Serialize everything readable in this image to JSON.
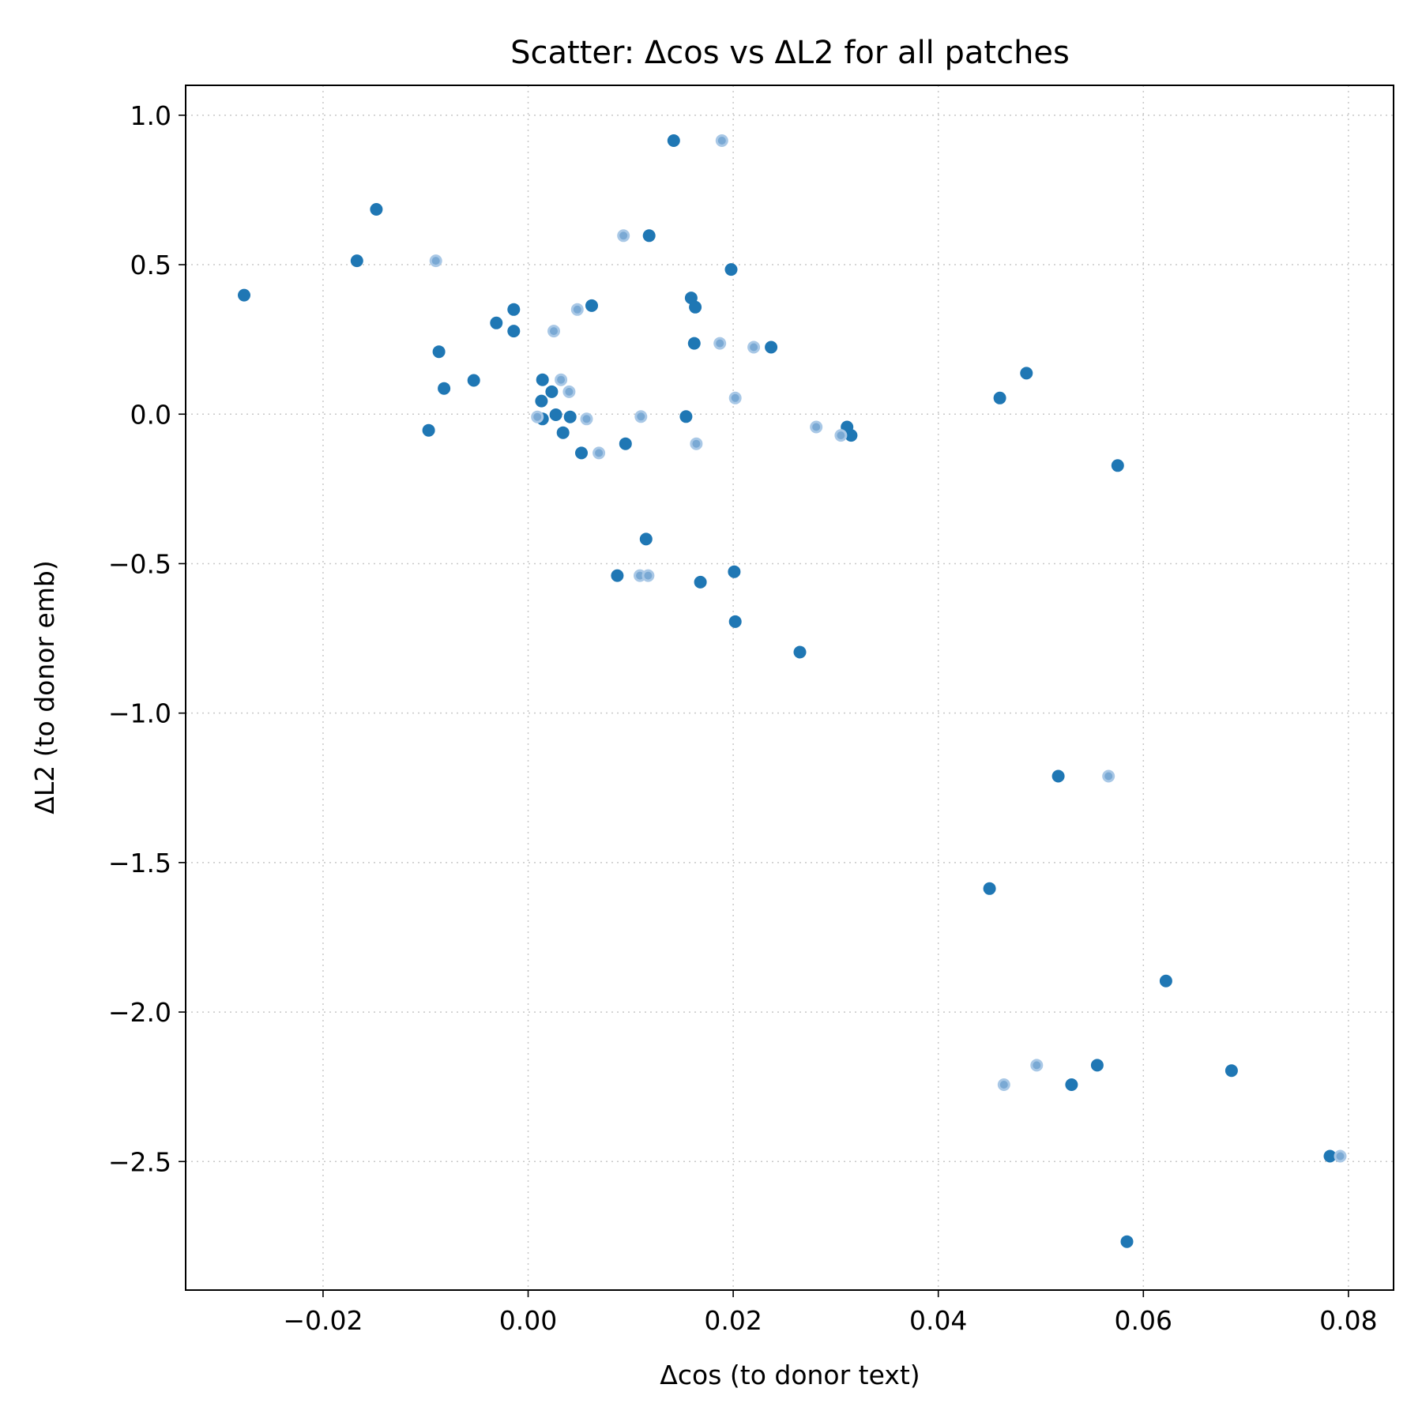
{
  "chart_data": {
    "type": "scatter",
    "title": "Scatter: Δcos vs ΔL2 for all patches",
    "xlabel": "Δcos (to donor text)",
    "ylabel": "ΔL2 (to donor emb)",
    "xlim": [
      -0.0334,
      0.0844
    ],
    "ylim": [
      -2.93,
      1.1
    ],
    "xticks": [
      -0.02,
      0.0,
      0.02,
      0.04,
      0.06,
      0.08
    ],
    "xtick_labels": [
      "−0.02",
      "0.00",
      "0.02",
      "0.04",
      "0.06",
      "0.08"
    ],
    "yticks": [
      1.0,
      0.5,
      0.0,
      -0.5,
      -1.0,
      -1.5,
      -2.0,
      -2.5
    ],
    "ytick_labels": [
      "1.0",
      "0.5",
      "0.0",
      "−0.5",
      "−1.0",
      "−1.5",
      "−2.0",
      "−2.5"
    ],
    "grid": true,
    "colors": {
      "solid": "#1f77b4",
      "faded": "#7aa9d4"
    },
    "series": [
      {
        "style": "solid",
        "points": [
          [
            0.0142,
            0.915
          ],
          [
            0.0118,
            0.597
          ],
          [
            -0.0148,
            0.685
          ],
          [
            -0.0167,
            0.513
          ],
          [
            -0.0277,
            0.398
          ],
          [
            0.0198,
            0.484
          ],
          [
            0.0159,
            0.389
          ],
          [
            0.0163,
            0.358
          ],
          [
            0.0062,
            0.363
          ],
          [
            -0.0014,
            0.35
          ],
          [
            -0.0031,
            0.305
          ],
          [
            -0.0014,
            0.278
          ],
          [
            0.0162,
            0.237
          ],
          [
            0.0237,
            0.224
          ],
          [
            -0.0087,
            0.209
          ],
          [
            0.0486,
            0.137
          ],
          [
            -0.0053,
            0.113
          ],
          [
            0.0014,
            0.115
          ],
          [
            -0.0082,
            0.086
          ],
          [
            0.0023,
            0.075
          ],
          [
            0.0013,
            0.044
          ],
          [
            0.046,
            0.054
          ],
          [
            0.0014,
            -0.016
          ],
          [
            0.0027,
            -0.002
          ],
          [
            0.0041,
            -0.009
          ],
          [
            0.0154,
            -0.008
          ],
          [
            -0.0097,
            -0.054
          ],
          [
            0.0034,
            -0.062
          ],
          [
            0.0311,
            -0.043
          ],
          [
            0.0315,
            -0.071
          ],
          [
            0.0095,
            -0.099
          ],
          [
            0.0052,
            -0.13
          ],
          [
            0.0575,
            -0.172
          ],
          [
            0.0115,
            -0.418
          ],
          [
            0.0087,
            -0.54
          ],
          [
            0.0201,
            -0.527
          ],
          [
            0.0168,
            -0.562
          ],
          [
            0.0202,
            -0.694
          ],
          [
            0.0265,
            -0.796
          ],
          [
            0.0517,
            -1.211
          ],
          [
            0.045,
            -1.587
          ],
          [
            0.0622,
            -1.896
          ],
          [
            0.0555,
            -2.178
          ],
          [
            0.053,
            -2.243
          ],
          [
            0.0686,
            -2.196
          ],
          [
            0.0782,
            -2.482
          ],
          [
            0.0584,
            -2.768
          ]
        ]
      },
      {
        "style": "faded",
        "points": [
          [
            0.0189,
            0.915
          ],
          [
            0.0093,
            0.597
          ],
          [
            -0.009,
            0.513
          ],
          [
            0.0048,
            0.35
          ],
          [
            0.0025,
            0.278
          ],
          [
            0.0187,
            0.237
          ],
          [
            0.022,
            0.224
          ],
          [
            0.0032,
            0.115
          ],
          [
            0.004,
            0.075
          ],
          [
            0.0202,
            0.054
          ],
          [
            0.0009,
            -0.009
          ],
          [
            0.0057,
            -0.016
          ],
          [
            0.011,
            -0.008
          ],
          [
            0.0281,
            -0.043
          ],
          [
            0.0305,
            -0.071
          ],
          [
            0.0164,
            -0.099
          ],
          [
            0.0069,
            -0.13
          ],
          [
            0.0109,
            -0.54
          ],
          [
            0.0117,
            -0.54
          ],
          [
            0.0566,
            -1.211
          ],
          [
            0.0496,
            -2.178
          ],
          [
            0.0464,
            -2.243
          ],
          [
            0.0792,
            -2.482
          ]
        ]
      }
    ]
  }
}
